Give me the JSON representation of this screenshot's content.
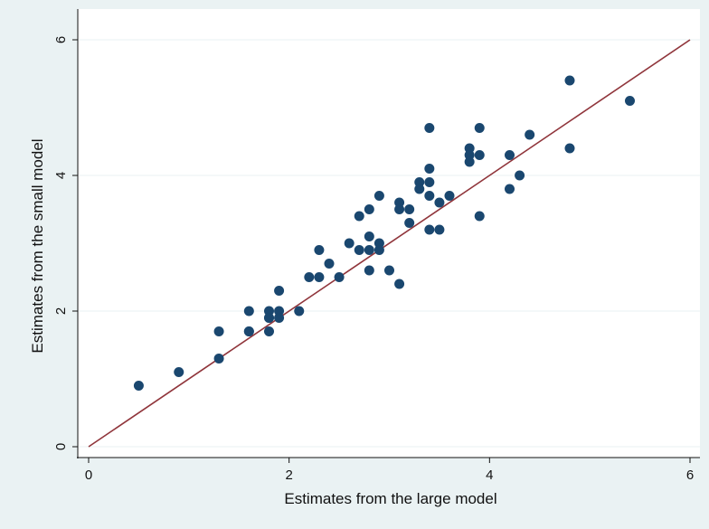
{
  "chart_data": {
    "type": "scatter",
    "title": "",
    "xlabel": "Estimates from the large model",
    "ylabel": "Estimates from the small model",
    "xlim": [
      0,
      6
    ],
    "ylim": [
      0,
      6
    ],
    "x_ticks": [
      0,
      2,
      4,
      6
    ],
    "y_ticks": [
      0,
      2,
      4,
      6
    ],
    "grid": "horizontal",
    "legend": "none",
    "colors": {
      "background": "#eaf2f3",
      "plot_area": "#ffffff",
      "gridline": "#eaf2f3",
      "marker": "#1a476f",
      "reference_line": "#90353b"
    },
    "reference_line": {
      "from": [
        0,
        0
      ],
      "to": [
        6,
        6
      ]
    },
    "points": [
      [
        0.5,
        0.9
      ],
      [
        0.9,
        1.1
      ],
      [
        1.3,
        1.7
      ],
      [
        1.3,
        1.3
      ],
      [
        1.6,
        2.0
      ],
      [
        1.6,
        1.7
      ],
      [
        1.6,
        1.7
      ],
      [
        1.8,
        2.0
      ],
      [
        1.8,
        1.9
      ],
      [
        1.8,
        1.7
      ],
      [
        1.8,
        1.9
      ],
      [
        1.9,
        2.3
      ],
      [
        1.9,
        2.0
      ],
      [
        1.9,
        1.9
      ],
      [
        2.1,
        2.0
      ],
      [
        2.2,
        2.5
      ],
      [
        2.3,
        2.9
      ],
      [
        2.3,
        2.5
      ],
      [
        2.4,
        2.7
      ],
      [
        2.5,
        2.5
      ],
      [
        2.6,
        3.0
      ],
      [
        2.7,
        3.4
      ],
      [
        2.7,
        2.9
      ],
      [
        2.8,
        3.5
      ],
      [
        2.8,
        3.1
      ],
      [
        2.8,
        2.9
      ],
      [
        2.8,
        2.6
      ],
      [
        2.9,
        3.7
      ],
      [
        2.9,
        3.0
      ],
      [
        2.9,
        2.9
      ],
      [
        3.0,
        2.6
      ],
      [
        3.1,
        3.6
      ],
      [
        3.1,
        3.5
      ],
      [
        3.1,
        2.4
      ],
      [
        3.2,
        3.5
      ],
      [
        3.2,
        3.3
      ],
      [
        3.3,
        3.9
      ],
      [
        3.3,
        3.8
      ],
      [
        3.4,
        4.7
      ],
      [
        3.4,
        4.1
      ],
      [
        3.4,
        3.9
      ],
      [
        3.4,
        3.7
      ],
      [
        3.4,
        3.2
      ],
      [
        3.5,
        3.6
      ],
      [
        3.5,
        3.2
      ],
      [
        3.6,
        3.7
      ],
      [
        3.8,
        4.4
      ],
      [
        3.8,
        4.3
      ],
      [
        3.8,
        4.2
      ],
      [
        3.9,
        4.7
      ],
      [
        3.9,
        4.3
      ],
      [
        3.9,
        3.4
      ],
      [
        4.2,
        4.3
      ],
      [
        4.2,
        3.8
      ],
      [
        4.3,
        4.0
      ],
      [
        4.4,
        4.6
      ],
      [
        4.8,
        5.4
      ],
      [
        4.8,
        4.4
      ],
      [
        5.4,
        5.1
      ]
    ]
  }
}
